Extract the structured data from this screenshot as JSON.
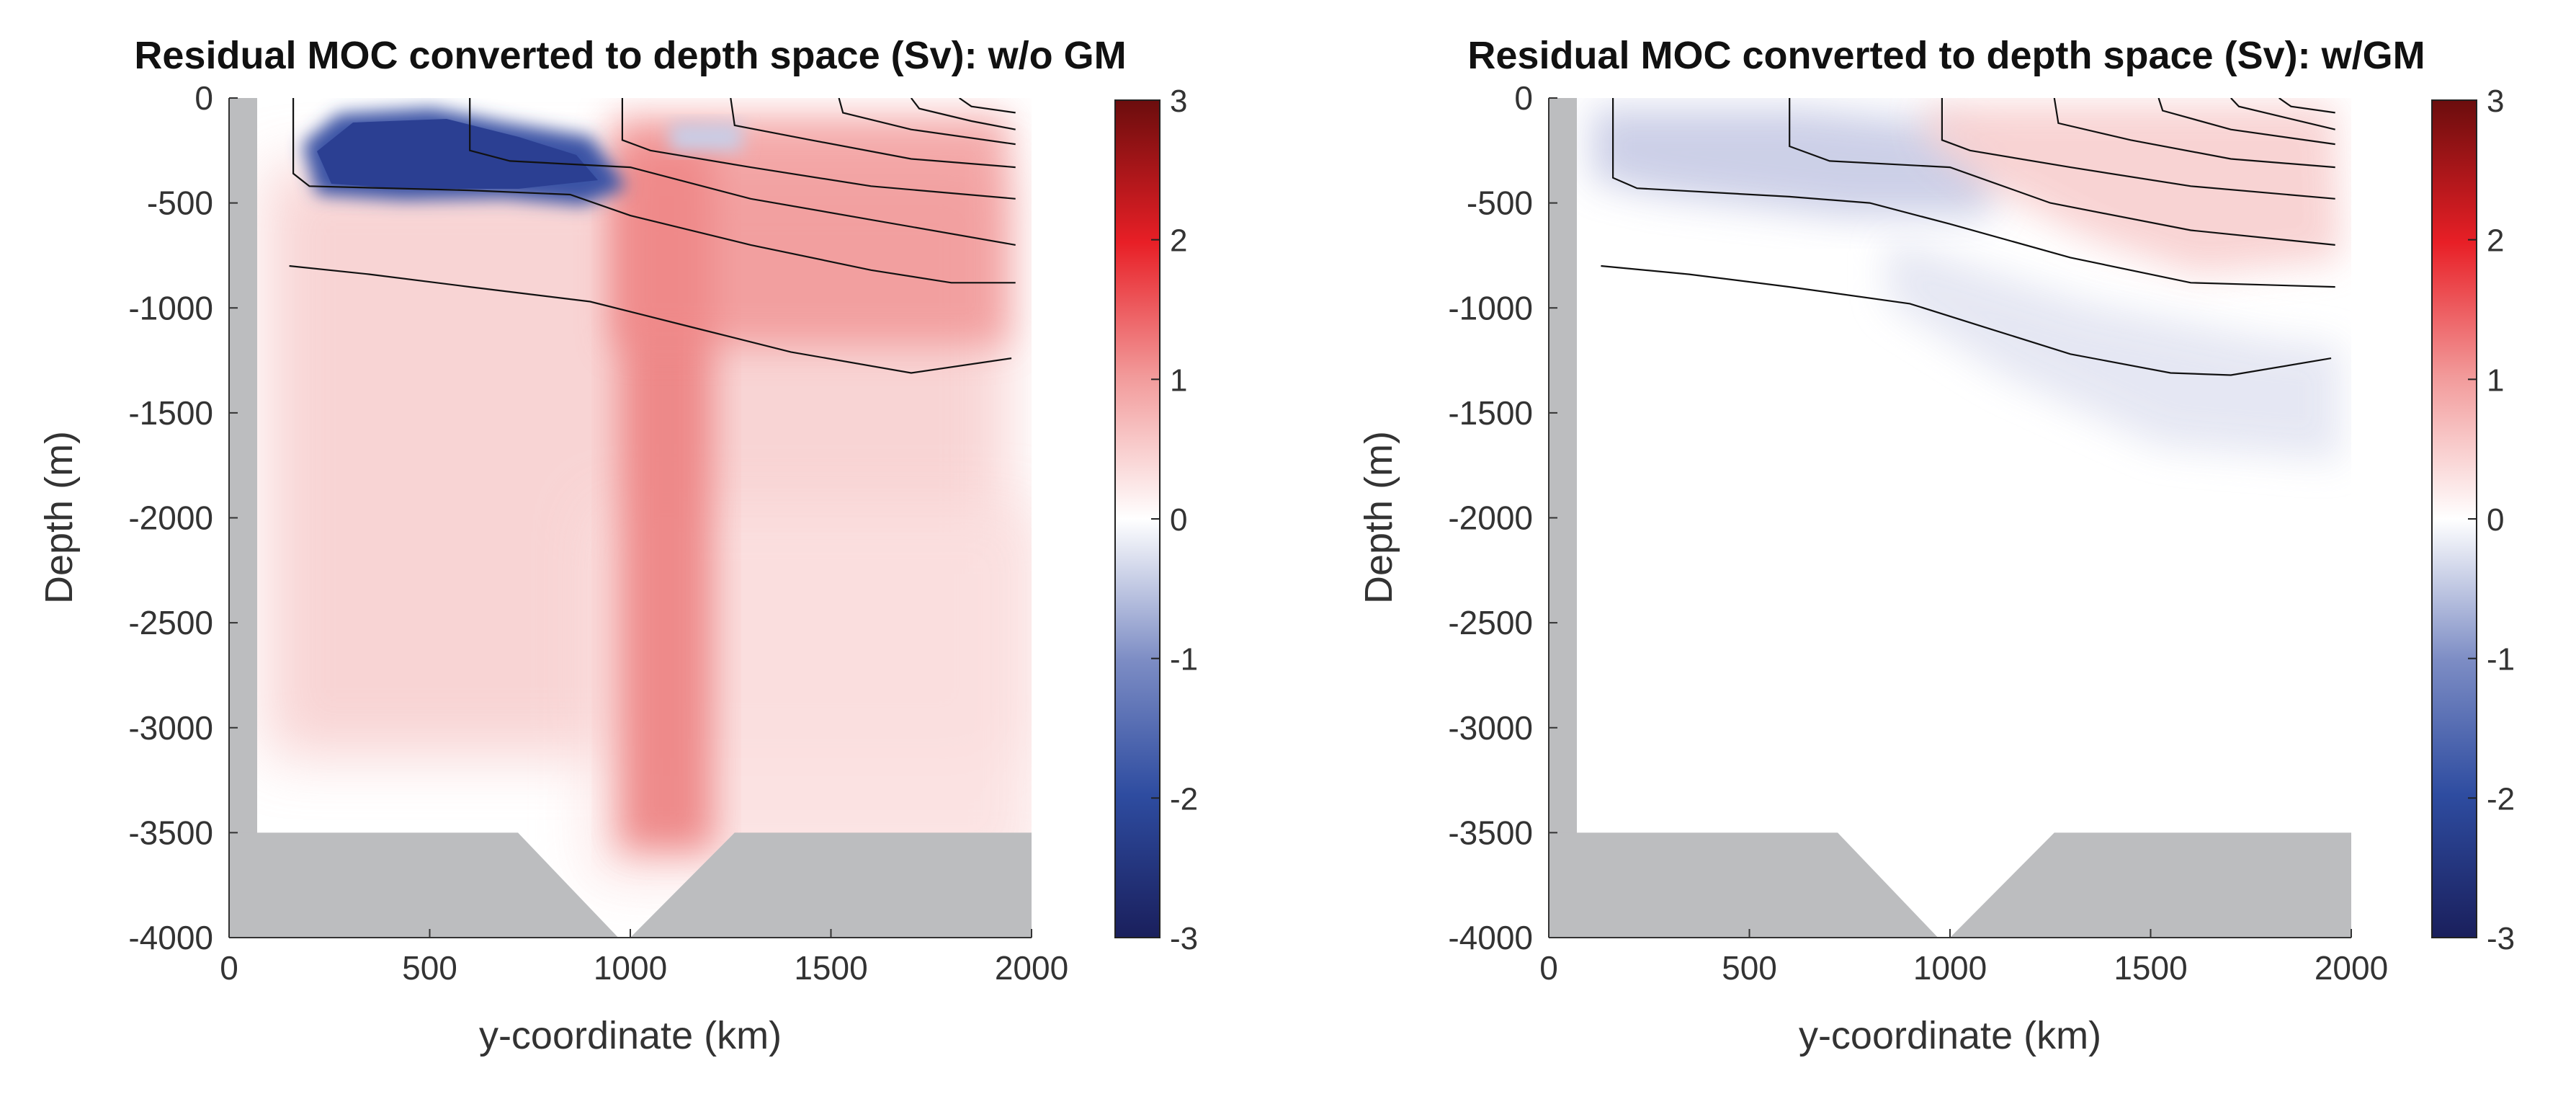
{
  "chart_data": [
    {
      "type": "heatmap",
      "title": "Residual MOC converted to depth space (Sv): w/o GM",
      "xlabel": "y-coordinate (km)",
      "ylabel": "Depth (m)",
      "xlim": [
        0,
        2000
      ],
      "ylim": [
        -4000,
        0
      ],
      "xticks": [
        "0",
        "500",
        "1000",
        "1500",
        "2000"
      ],
      "yticks": [
        "0",
        "-500",
        "-1000",
        "-1500",
        "-2000",
        "-2500",
        "-3000",
        "-3500",
        "-4000"
      ],
      "colorbar": {
        "range": [
          -3,
          3
        ],
        "ticks": [
          "3",
          "2",
          "1",
          "0",
          "-1",
          "-2",
          "-3"
        ],
        "colors": [
          "#1a1f5c",
          "#2e4ca0",
          "#7c8cc4",
          "#ffffff",
          "#f29a9a",
          "#e81f26",
          "#6b0d0d"
        ]
      },
      "field_features": [
        {
          "kind": "negative-cell",
          "y_km": [
            170,
            930
          ],
          "depth_m": [
            -50,
            -430
          ],
          "value_sv": -2.2
        },
        {
          "kind": "positive-core",
          "y_km": [
            960,
            1200
          ],
          "depth_m": [
            -300,
            -3400
          ],
          "value_sv": 1.5
        },
        {
          "kind": "broad-positive",
          "y_km": [
            100,
            1950
          ],
          "depth_m": [
            -400,
            -3100
          ],
          "value_sv": 0.7
        }
      ],
      "contours": [
        {
          "points": [
            [
              150,
              -800
            ],
            [
              350,
              -840
            ],
            [
              600,
              -900
            ],
            [
              900,
              -970
            ],
            [
              1150,
              -1090
            ],
            [
              1400,
              -1210
            ],
            [
              1700,
              -1310
            ],
            [
              1950,
              -1240
            ]
          ]
        },
        {
          "points": [
            [
              160,
              0
            ],
            [
              160,
              -360
            ],
            [
              200,
              -420
            ],
            [
              600,
              -440
            ],
            [
              850,
              -460
            ],
            [
              1000,
              -560
            ],
            [
              1300,
              -700
            ],
            [
              1600,
              -820
            ],
            [
              1800,
              -880
            ],
            [
              1960,
              -880
            ]
          ]
        },
        {
          "points": [
            [
              600,
              0
            ],
            [
              600,
              -250
            ],
            [
              700,
              -300
            ],
            [
              1000,
              -330
            ],
            [
              1300,
              -480
            ],
            [
              1600,
              -580
            ],
            [
              1960,
              -700
            ]
          ]
        },
        {
          "points": [
            [
              980,
              0
            ],
            [
              980,
              -200
            ],
            [
              1050,
              -250
            ],
            [
              1300,
              -330
            ],
            [
              1600,
              -420
            ],
            [
              1960,
              -480
            ]
          ]
        },
        {
          "points": [
            [
              1250,
              0
            ],
            [
              1260,
              -130
            ],
            [
              1450,
              -200
            ],
            [
              1700,
              -290
            ],
            [
              1960,
              -330
            ]
          ]
        },
        {
          "points": [
            [
              1520,
              0
            ],
            [
              1530,
              -70
            ],
            [
              1700,
              -150
            ],
            [
              1960,
              -220
            ]
          ]
        },
        {
          "points": [
            [
              1700,
              0
            ],
            [
              1720,
              -50
            ],
            [
              1850,
              -110
            ],
            [
              1960,
              -150
            ]
          ]
        },
        {
          "points": [
            [
              1820,
              0
            ],
            [
              1850,
              -40
            ],
            [
              1960,
              -70
            ]
          ]
        }
      ],
      "topography": {
        "west_wall_km": 70,
        "shelf_depth_m": -3500,
        "trench": [
          [
            720,
            -3500
          ],
          [
            970,
            -4000
          ],
          [
            1000,
            -4000
          ],
          [
            1260,
            -3500
          ]
        ]
      }
    },
    {
      "type": "heatmap",
      "title": "Residual MOC converted to depth space (Sv): w/GM",
      "xlabel": "y-coordinate (km)",
      "ylabel": "Depth (m)",
      "xlim": [
        0,
        2000
      ],
      "ylim": [
        -4000,
        0
      ],
      "xticks": [
        "0",
        "500",
        "1000",
        "1500",
        "2000"
      ],
      "yticks": [
        "0",
        "-500",
        "-1000",
        "-1500",
        "-2000",
        "-2500",
        "-3000",
        "-3500",
        "-4000"
      ],
      "colorbar": {
        "range": [
          -3,
          3
        ],
        "ticks": [
          "3",
          "2",
          "1",
          "0",
          "-1",
          "-2",
          "-3"
        ],
        "colors": [
          "#1a1f5c",
          "#2e4ca0",
          "#7c8cc4",
          "#ffffff",
          "#f29a9a",
          "#e81f26",
          "#6b0d0d"
        ]
      },
      "field_features": [
        {
          "kind": "weak-negative-cell",
          "y_km": [
            150,
            1000
          ],
          "depth_m": [
            -50,
            -420
          ],
          "value_sv": -0.5
        },
        {
          "kind": "weak-positive-cell",
          "y_km": [
            950,
            1950
          ],
          "depth_m": [
            -30,
            -560
          ],
          "value_sv": 0.4
        },
        {
          "kind": "weak-negative-band",
          "y_km": [
            1100,
            1950
          ],
          "depth_m": [
            -550,
            -1200
          ],
          "value_sv": -0.25
        }
      ],
      "contours": [
        {
          "points": [
            [
              130,
              -800
            ],
            [
              350,
              -840
            ],
            [
              600,
              -900
            ],
            [
              900,
              -980
            ],
            [
              1100,
              -1100
            ],
            [
              1300,
              -1220
            ],
            [
              1550,
              -1310
            ],
            [
              1700,
              -1320
            ],
            [
              1950,
              -1240
            ]
          ]
        },
        {
          "points": [
            [
              160,
              0
            ],
            [
              160,
              -380
            ],
            [
              220,
              -430
            ],
            [
              600,
              -470
            ],
            [
              800,
              -500
            ],
            [
              1000,
              -600
            ],
            [
              1300,
              -760
            ],
            [
              1600,
              -880
            ],
            [
              1960,
              -900
            ]
          ]
        },
        {
          "points": [
            [
              600,
              0
            ],
            [
              600,
              -230
            ],
            [
              700,
              -300
            ],
            [
              1000,
              -330
            ],
            [
              1250,
              -500
            ],
            [
              1600,
              -630
            ],
            [
              1960,
              -700
            ]
          ]
        },
        {
          "points": [
            [
              980,
              0
            ],
            [
              980,
              -200
            ],
            [
              1050,
              -250
            ],
            [
              1300,
              -330
            ],
            [
              1600,
              -420
            ],
            [
              1960,
              -480
            ]
          ]
        },
        {
          "points": [
            [
              1260,
              0
            ],
            [
              1270,
              -120
            ],
            [
              1450,
              -200
            ],
            [
              1700,
              -290
            ],
            [
              1960,
              -330
            ]
          ]
        },
        {
          "points": [
            [
              1520,
              0
            ],
            [
              1530,
              -60
            ],
            [
              1700,
              -150
            ],
            [
              1960,
              -220
            ]
          ]
        },
        {
          "points": [
            [
              1700,
              0
            ],
            [
              1720,
              -40
            ],
            [
              1850,
              -100
            ],
            [
              1960,
              -150
            ]
          ]
        },
        {
          "points": [
            [
              1820,
              0
            ],
            [
              1850,
              -40
            ],
            [
              1960,
              -70
            ]
          ]
        }
      ],
      "topography": {
        "west_wall_km": 70,
        "shelf_depth_m": -3500,
        "trench": [
          [
            720,
            -3500
          ],
          [
            970,
            -4000
          ],
          [
            1000,
            -4000
          ],
          [
            1260,
            -3500
          ]
        ]
      }
    }
  ]
}
